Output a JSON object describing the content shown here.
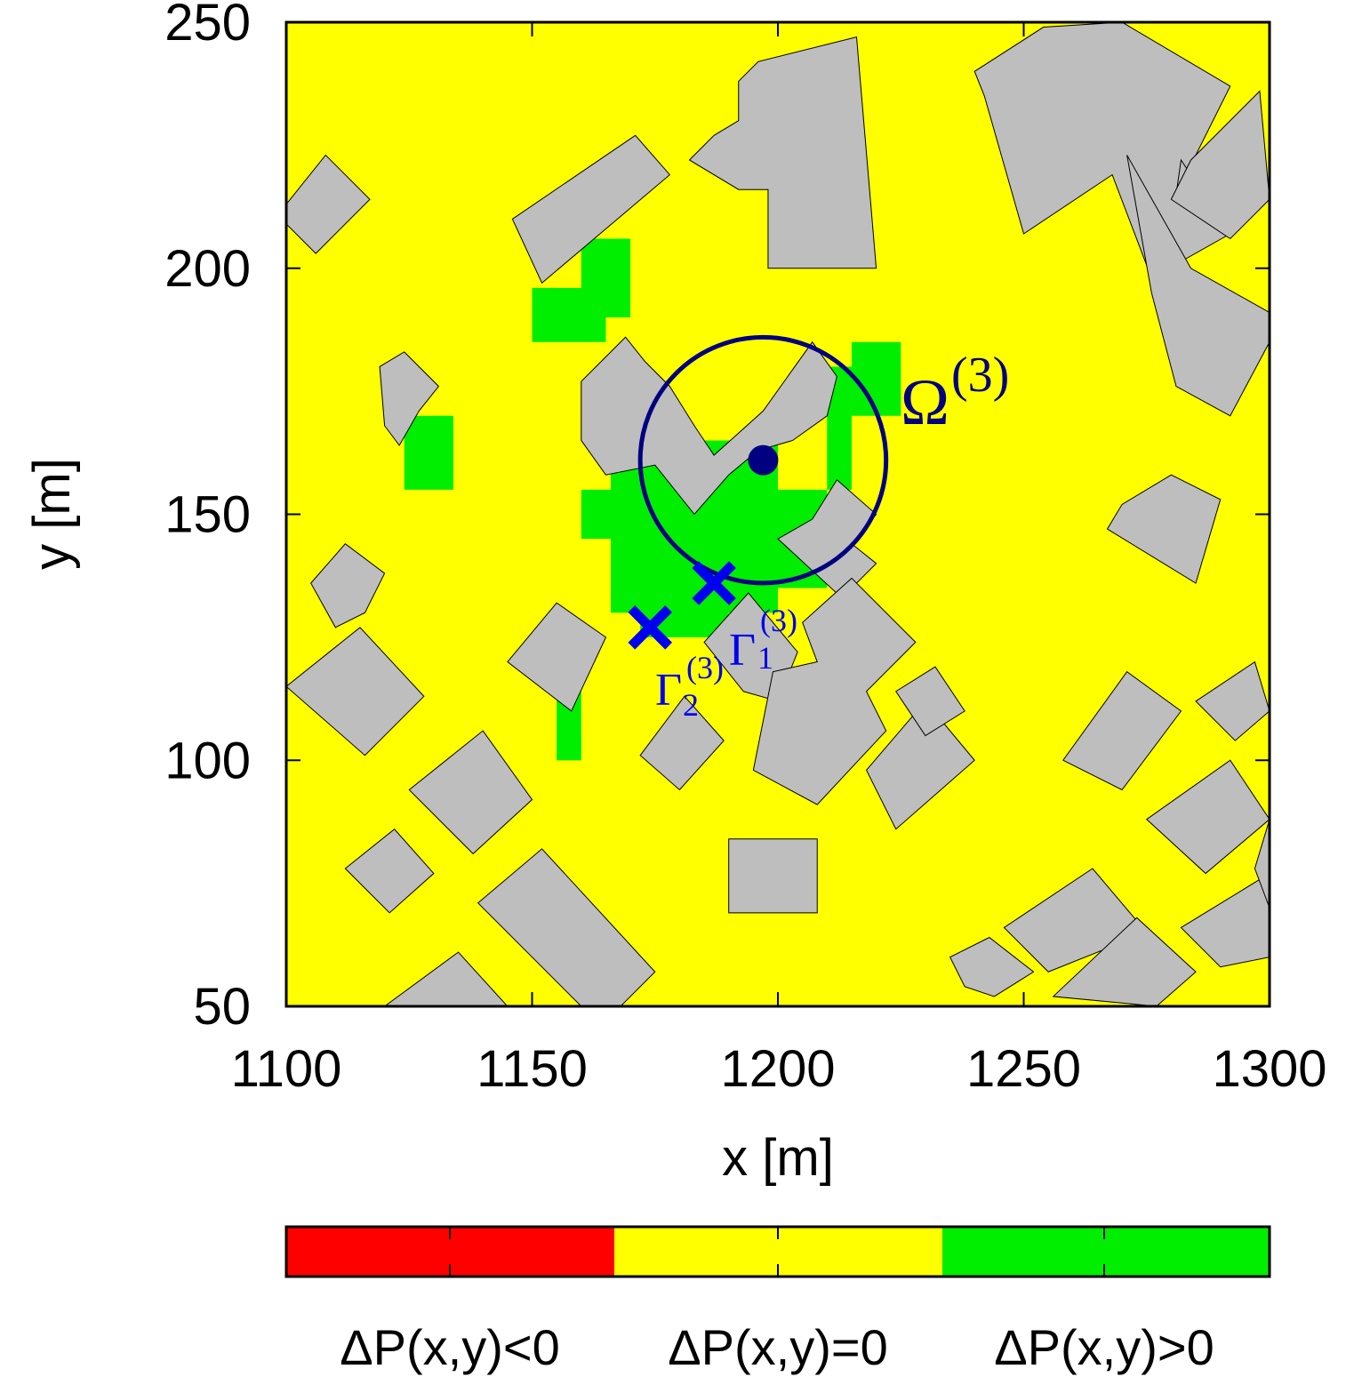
{
  "chart_data": {
    "type": "heatmap",
    "xlabel": "x [m]",
    "ylabel": "y [m]",
    "xlim": [
      1100,
      1300
    ],
    "ylim": [
      50,
      250
    ],
    "xticks": [
      "1100",
      "1150",
      "1200",
      "1250",
      "1300"
    ],
    "yticks": [
      "50",
      "100",
      "150",
      "200",
      "250"
    ],
    "grid": false,
    "colors": {
      "negative": "#ff0000",
      "zero": "#ffff00",
      "positive": "#00ee00",
      "building": "#bebebe",
      "annotation": "#000080",
      "marker": "#0000ee"
    },
    "legend": {
      "placement": "bottom",
      "entries": [
        {
          "label": "ΔP(x,y)<0",
          "color": "#ff0000"
        },
        {
          "label": "ΔP(x,y)=0",
          "color": "#ffff00"
        },
        {
          "label": "ΔP(x,y)>0",
          "color": "#00ee00"
        }
      ]
    },
    "region": {
      "label_main": "Ω",
      "label_sup": "(3)",
      "center": [
        1197,
        161
      ],
      "radius": 25
    },
    "markers": [
      {
        "label_main": "Γ",
        "label_sub": "1",
        "label_sup": "(3)",
        "x": 1187,
        "y": 136
      },
      {
        "label_main": "Γ",
        "label_sub": "2",
        "label_sup": "(3)",
        "x": 1174,
        "y": 127
      }
    ],
    "positive_cells": [
      [
        [
          1150,
          185
        ],
        [
          1165,
          185
        ],
        [
          1165,
          190
        ],
        [
          1170,
          190
        ],
        [
          1170,
          206
        ],
        [
          1160,
          206
        ],
        [
          1160,
          196
        ],
        [
          1150,
          196
        ]
      ],
      [
        [
          1124,
          155
        ],
        [
          1134,
          155
        ],
        [
          1134,
          170
        ],
        [
          1124,
          170
        ]
      ],
      [
        [
          1155,
          100
        ],
        [
          1160,
          100
        ],
        [
          1160,
          105
        ],
        [
          1155,
          105
        ]
      ],
      [
        [
          1155,
          100
        ],
        [
          1160,
          100
        ],
        [
          1160,
          115
        ],
        [
          1155,
          115
        ]
      ],
      [
        [
          1215,
          170
        ],
        [
          1225,
          170
        ],
        [
          1225,
          185
        ],
        [
          1215,
          185
        ]
      ],
      [
        [
          1210,
          155
        ],
        [
          1215,
          155
        ],
        [
          1215,
          180
        ],
        [
          1210,
          180
        ]
      ],
      [
        [
          1166,
          130
        ],
        [
          1172,
          130
        ],
        [
          1172,
          125
        ],
        [
          1190,
          125
        ],
        [
          1190,
          130
        ],
        [
          1200,
          130
        ],
        [
          1200,
          135
        ],
        [
          1210,
          135
        ],
        [
          1210,
          155
        ],
        [
          1200,
          155
        ],
        [
          1200,
          165
        ],
        [
          1180,
          165
        ],
        [
          1180,
          170
        ],
        [
          1166,
          170
        ],
        [
          1166,
          155
        ],
        [
          1160,
          155
        ],
        [
          1160,
          145
        ],
        [
          1166,
          145
        ]
      ]
    ],
    "buildings": [
      [
        [
          1100,
          213
        ],
        [
          1108,
          223
        ],
        [
          1117,
          214
        ],
        [
          1106,
          203
        ],
        [
          1100,
          209
        ]
      ],
      [
        [
          1146,
          210
        ],
        [
          1171,
          227
        ],
        [
          1178,
          219
        ],
        [
          1152,
          197
        ],
        [
          1146,
          210
        ]
      ],
      [
        [
          1119,
          180
        ],
        [
          1124,
          183
        ],
        [
          1131,
          176
        ],
        [
          1127,
          171
        ],
        [
          1123,
          164
        ],
        [
          1120,
          168
        ]
      ],
      [
        [
          1182,
          222
        ],
        [
          1187,
          227
        ],
        [
          1192,
          230
        ],
        [
          1192,
          238
        ],
        [
          1196,
          242
        ],
        [
          1216,
          247
        ],
        [
          1220,
          200
        ],
        [
          1198,
          200
        ],
        [
          1198,
          216
        ],
        [
          1192,
          216
        ]
      ],
      [
        [
          1240,
          240
        ],
        [
          1254,
          249
        ],
        [
          1270,
          250
        ],
        [
          1292,
          237
        ],
        [
          1281,
          215
        ],
        [
          1282,
          222
        ],
        [
          1292,
          207
        ],
        [
          1276,
          198
        ],
        [
          1268,
          219
        ],
        [
          1250,
          207
        ],
        [
          1242,
          235
        ]
      ],
      [
        [
          1284,
          222
        ],
        [
          1298,
          236
        ],
        [
          1300,
          214
        ],
        [
          1292,
          206
        ],
        [
          1280,
          214
        ]
      ],
      [
        [
          1160,
          177
        ],
        [
          1165,
          182
        ],
        [
          1169,
          186
        ],
        [
          1173,
          181
        ],
        [
          1178,
          176
        ],
        [
          1183,
          168
        ],
        [
          1187,
          162
        ],
        [
          1197,
          171
        ],
        [
          1202,
          178
        ],
        [
          1207,
          185
        ],
        [
          1212,
          178
        ],
        [
          1210,
          170
        ],
        [
          1203,
          165
        ],
        [
          1196,
          163
        ],
        [
          1190,
          158
        ],
        [
          1183,
          150
        ],
        [
          1175,
          160
        ],
        [
          1165,
          158
        ],
        [
          1160,
          165
        ]
      ],
      [
        [
          1271,
          223
        ],
        [
          1284,
          200
        ],
        [
          1300,
          191
        ],
        [
          1300,
          185
        ],
        [
          1292,
          170
        ],
        [
          1281,
          176
        ],
        [
          1276,
          195
        ]
      ],
      [
        [
          1267,
          147
        ],
        [
          1285,
          136
        ],
        [
          1290,
          153
        ],
        [
          1280,
          158
        ],
        [
          1270,
          152
        ]
      ],
      [
        [
          1207,
          149
        ],
        [
          1212,
          157
        ],
        [
          1220,
          150
        ],
        [
          1215,
          144
        ],
        [
          1220,
          140
        ],
        [
          1213,
          133
        ],
        [
          1200,
          145
        ]
      ],
      [
        [
          1105,
          136
        ],
        [
          1112,
          144
        ],
        [
          1120,
          138
        ],
        [
          1116,
          130
        ],
        [
          1110,
          127
        ]
      ],
      [
        [
          1145,
          120
        ],
        [
          1155,
          132
        ],
        [
          1165,
          125
        ],
        [
          1158,
          110
        ]
      ],
      [
        [
          1100,
          115
        ],
        [
          1115,
          127
        ],
        [
          1128,
          113
        ],
        [
          1116,
          101
        ]
      ],
      [
        [
          1125,
          94
        ],
        [
          1140,
          106
        ],
        [
          1150,
          92
        ],
        [
          1138,
          81
        ]
      ],
      [
        [
          1112,
          78
        ],
        [
          1122,
          86
        ],
        [
          1130,
          77
        ],
        [
          1121,
          69
        ]
      ],
      [
        [
          1172,
          101
        ],
        [
          1181,
          113
        ],
        [
          1189,
          104
        ],
        [
          1180,
          94
        ]
      ],
      [
        [
          1185,
          124
        ],
        [
          1194,
          134
        ],
        [
          1204,
          122
        ],
        [
          1200,
          112
        ],
        [
          1193,
          114
        ]
      ],
      [
        [
          1190,
          69
        ],
        [
          1208,
          69
        ],
        [
          1208,
          84
        ],
        [
          1190,
          84
        ]
      ],
      [
        [
          1195,
          98
        ],
        [
          1208,
          91
        ],
        [
          1222,
          106
        ],
        [
          1218,
          114
        ],
        [
          1228,
          124
        ],
        [
          1215,
          137
        ],
        [
          1205,
          128
        ],
        [
          1208,
          120
        ],
        [
          1199,
          118
        ]
      ],
      [
        [
          1218,
          98
        ],
        [
          1230,
          112
        ],
        [
          1240,
          100
        ],
        [
          1224,
          86
        ]
      ],
      [
        [
          1224,
          114
        ],
        [
          1232,
          119
        ],
        [
          1238,
          110
        ],
        [
          1230,
          105
        ]
      ],
      [
        [
          1258,
          100
        ],
        [
          1271,
          118
        ],
        [
          1282,
          110
        ],
        [
          1270,
          94
        ]
      ],
      [
        [
          1275,
          88
        ],
        [
          1292,
          100
        ],
        [
          1300,
          88
        ],
        [
          1287,
          77
        ]
      ],
      [
        [
          1285,
          112
        ],
        [
          1297,
          120
        ],
        [
          1300,
          110
        ],
        [
          1293,
          104
        ]
      ],
      [
        [
          1246,
          66
        ],
        [
          1264,
          78
        ],
        [
          1275,
          65
        ],
        [
          1255,
          57
        ]
      ],
      [
        [
          1282,
          66
        ],
        [
          1300,
          77
        ],
        [
          1300,
          60
        ],
        [
          1290,
          58
        ]
      ],
      [
        [
          1235,
          60
        ],
        [
          1243,
          64
        ],
        [
          1252,
          57
        ],
        [
          1244,
          52
        ],
        [
          1238,
          54
        ]
      ],
      [
        [
          1256,
          52
        ],
        [
          1273,
          68
        ],
        [
          1285,
          57
        ],
        [
          1277,
          50
        ]
      ],
      [
        [
          1139,
          71
        ],
        [
          1152,
          82
        ],
        [
          1175,
          57
        ],
        [
          1168,
          50
        ],
        [
          1160,
          50
        ]
      ],
      [
        [
          1120,
          50
        ],
        [
          1135,
          61
        ],
        [
          1145,
          50
        ]
      ],
      [
        [
          1297,
          78
        ],
        [
          1300,
          88
        ],
        [
          1300,
          70
        ]
      ],
      [
        [
          1300,
          200
        ],
        [
          1300,
          214
        ]
      ]
    ]
  }
}
